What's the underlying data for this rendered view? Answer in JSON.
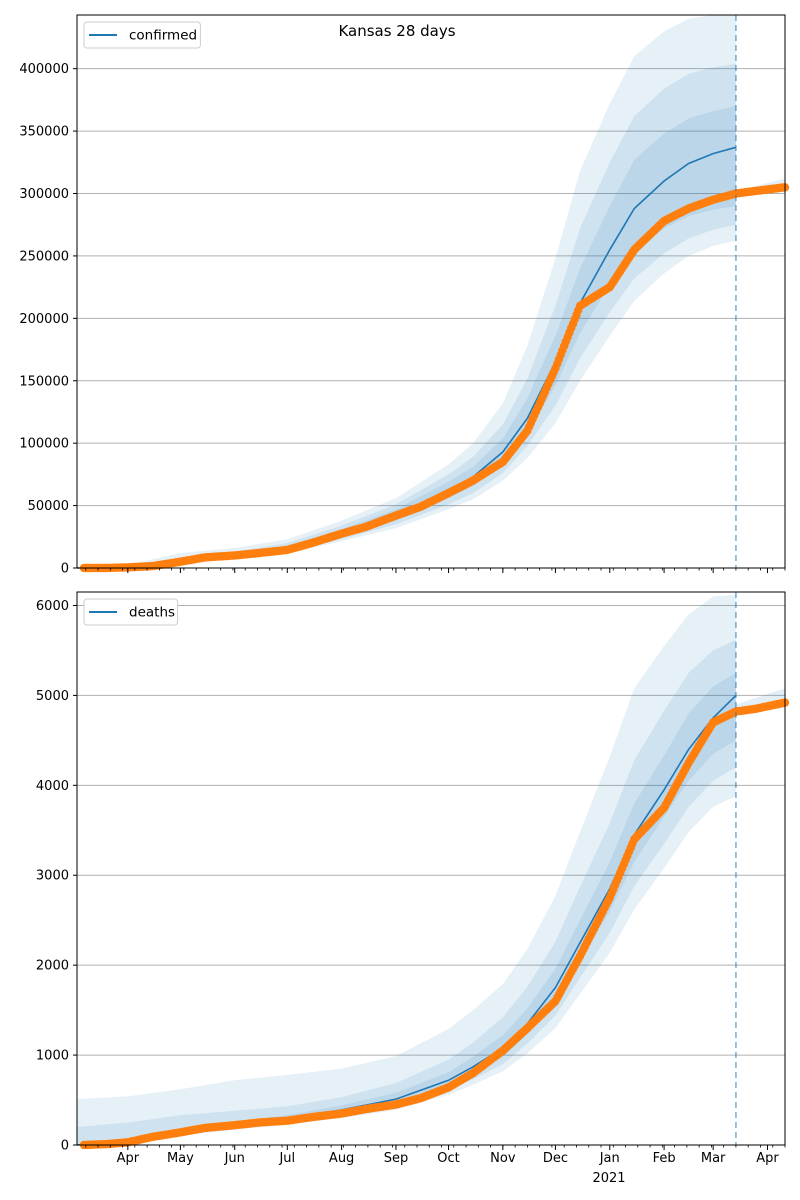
{
  "title": "Kansas 28 days",
  "colors": {
    "forecast": "#1f77b4",
    "observed": "#ff7f0e",
    "grid": "#b0b0b0",
    "band": "#1f77b4",
    "cutoff": "#1f77b4"
  },
  "x_axis": {
    "months": [
      {
        "label": "Apr",
        "date": "2020-04-01"
      },
      {
        "label": "May",
        "date": "2020-05-01"
      },
      {
        "label": "Jun",
        "date": "2020-06-01"
      },
      {
        "label": "Jul",
        "date": "2020-07-01"
      },
      {
        "label": "Aug",
        "date": "2020-08-01"
      },
      {
        "label": "Sep",
        "date": "2020-09-01"
      },
      {
        "label": "Oct",
        "date": "2020-10-01"
      },
      {
        "label": "Nov",
        "date": "2020-11-01"
      },
      {
        "label": "Dec",
        "date": "2020-12-01"
      },
      {
        "label": "Jan",
        "date": "2021-01-01"
      },
      {
        "label": "Feb",
        "date": "2021-02-01"
      },
      {
        "label": "Mar",
        "date": "2021-03-01"
      },
      {
        "label": "Apr",
        "date": "2021-04-01"
      }
    ],
    "year_label": "2021",
    "xlim": [
      "2020-03-03",
      "2021-04-11"
    ],
    "forecast_cutoff": "2021-03-14"
  },
  "chart_data": [
    {
      "type": "line",
      "legend": "confirmed",
      "legend_position": "upper-left",
      "grid": "horizontal",
      "ylim": [
        0,
        443000
      ],
      "yticks": [
        0,
        50000,
        100000,
        150000,
        200000,
        250000,
        300000,
        350000,
        400000
      ],
      "forecast": {
        "x": [
          "2020-03-03",
          "2020-04-01",
          "2020-05-01",
          "2020-06-01",
          "2020-07-01",
          "2020-08-01",
          "2020-09-01",
          "2020-10-01",
          "2020-10-15",
          "2020-11-01",
          "2020-11-15",
          "2020-12-01",
          "2020-12-15",
          "2021-01-01",
          "2021-01-15",
          "2021-02-01",
          "2021-02-15",
          "2021-03-01",
          "2021-03-14"
        ],
        "median": [
          0,
          500,
          5500,
          9800,
          15500,
          28000,
          42000,
          62000,
          73000,
          93000,
          120000,
          165000,
          212000,
          255000,
          288000,
          310000,
          324000,
          332000,
          337000
        ],
        "band_50_lo": [
          0,
          400,
          4500,
          8500,
          13500,
          25000,
          38000,
          56000,
          66000,
          84000,
          108000,
          146000,
          188000,
          227000,
          253000,
          272000,
          282000,
          287000,
          290000
        ],
        "band_50_hi": [
          0,
          700,
          6500,
          11000,
          17500,
          31000,
          47000,
          69000,
          81000,
          104000,
          136000,
          186000,
          240000,
          290000,
          327000,
          348000,
          360000,
          366000,
          370000
        ],
        "band_80_lo": [
          0,
          300,
          3800,
          7800,
          12500,
          23000,
          35000,
          51000,
          60000,
          76000,
          98000,
          130000,
          168000,
          205000,
          232000,
          252000,
          264000,
          271000,
          275000
        ],
        "band_80_hi": [
          0,
          1200,
          8500,
          13000,
          20000,
          34000,
          51000,
          75000,
          89000,
          115000,
          152000,
          210000,
          272000,
          325000,
          362000,
          384000,
          396000,
          401000,
          404000
        ],
        "band_95_lo": [
          0,
          250,
          3300,
          7200,
          11800,
          21500,
          32000,
          47000,
          55000,
          70000,
          88000,
          116000,
          150000,
          186000,
          214000,
          236000,
          250000,
          258000,
          262000
        ],
        "band_95_hi": [
          0,
          2500,
          12000,
          16000,
          23000,
          38000,
          56000,
          83000,
          100000,
          132000,
          178000,
          248000,
          318000,
          372000,
          410000,
          430000,
          440000,
          443000,
          443000
        ]
      },
      "observed": {
        "x": [
          "2020-03-07",
          "2020-03-20",
          "2020-04-01",
          "2020-04-15",
          "2020-05-01",
          "2020-05-15",
          "2020-06-01",
          "2020-06-15",
          "2020-07-01",
          "2020-07-15",
          "2020-08-01",
          "2020-08-15",
          "2020-09-01",
          "2020-09-15",
          "2020-10-01",
          "2020-10-15",
          "2020-11-01",
          "2020-11-15",
          "2020-12-01",
          "2020-12-15",
          "2021-01-01",
          "2021-01-15",
          "2021-02-01",
          "2021-02-15",
          "2021-03-01",
          "2021-03-14",
          "2021-03-25",
          "2021-04-11"
        ],
        "y": [
          1,
          30,
          500,
          1500,
          5000,
          8500,
          10000,
          12000,
          14500,
          20000,
          27500,
          33000,
          42000,
          49000,
          60000,
          70000,
          85000,
          110000,
          160000,
          210000,
          225000,
          255000,
          278000,
          288000,
          295000,
          300000,
          302000,
          305000
        ]
      },
      "extension": {
        "x": [
          "2021-03-14",
          "2021-04-11"
        ],
        "lo": [
          298000,
          301000
        ],
        "hi": [
          302000,
          312000
        ]
      }
    },
    {
      "type": "line",
      "legend": "deaths",
      "legend_position": "upper-left",
      "grid": "horizontal",
      "ylim": [
        0,
        6150
      ],
      "yticks": [
        0,
        1000,
        2000,
        3000,
        4000,
        5000,
        6000
      ],
      "forecast": {
        "x": [
          "2020-03-03",
          "2020-04-01",
          "2020-05-01",
          "2020-06-01",
          "2020-07-01",
          "2020-08-01",
          "2020-09-01",
          "2020-10-01",
          "2020-10-15",
          "2020-11-01",
          "2020-11-15",
          "2020-12-01",
          "2020-12-15",
          "2021-01-01",
          "2021-01-15",
          "2021-02-01",
          "2021-02-15",
          "2021-03-01",
          "2021-03-14"
        ],
        "median": [
          0,
          40,
          160,
          230,
          290,
          390,
          510,
          720,
          870,
          1080,
          1350,
          1750,
          2250,
          2850,
          3450,
          3950,
          4400,
          4750,
          5000
        ],
        "band_50_lo": [
          0,
          30,
          140,
          210,
          270,
          360,
          470,
          660,
          790,
          980,
          1230,
          1580,
          2050,
          2600,
          3150,
          3650,
          4050,
          4350,
          4500
        ],
        "band_50_hi": [
          0,
          60,
          190,
          260,
          330,
          440,
          580,
          810,
          980,
          1220,
          1520,
          1960,
          2500,
          3150,
          3800,
          4330,
          4800,
          5100,
          5250
        ],
        "band_80_lo": [
          0,
          20,
          120,
          190,
          250,
          330,
          430,
          610,
          730,
          900,
          1130,
          1440,
          1860,
          2360,
          2880,
          3350,
          3760,
          4050,
          4200
        ],
        "band_80_hi": [
          200,
          250,
          330,
          380,
          430,
          530,
          690,
          950,
          1140,
          1420,
          1760,
          2260,
          2870,
          3580,
          4280,
          4830,
          5250,
          5500,
          5620
        ],
        "band_95_lo": [
          0,
          10,
          100,
          170,
          230,
          300,
          390,
          560,
          670,
          820,
          1020,
          1300,
          1680,
          2140,
          2620,
          3080,
          3480,
          3760,
          3880
        ],
        "band_95_hi": [
          510,
          540,
          620,
          720,
          780,
          850,
          990,
          1290,
          1500,
          1790,
          2180,
          2770,
          3480,
          4320,
          5080,
          5550,
          5900,
          6100,
          6120
        ]
      },
      "observed": {
        "x": [
          "2020-03-07",
          "2020-03-20",
          "2020-04-01",
          "2020-04-15",
          "2020-05-01",
          "2020-05-15",
          "2020-06-01",
          "2020-06-15",
          "2020-07-01",
          "2020-07-15",
          "2020-08-01",
          "2020-08-15",
          "2020-09-01",
          "2020-09-15",
          "2020-10-01",
          "2020-10-15",
          "2020-11-01",
          "2020-11-15",
          "2020-12-01",
          "2020-12-15",
          "2021-01-01",
          "2021-01-15",
          "2021-02-01",
          "2021-02-15",
          "2021-03-01",
          "2021-03-14",
          "2021-03-25",
          "2021-04-11"
        ],
        "y": [
          0,
          10,
          30,
          90,
          140,
          190,
          220,
          250,
          270,
          310,
          350,
          400,
          450,
          520,
          640,
          800,
          1050,
          1300,
          1600,
          2100,
          2750,
          3400,
          3750,
          4250,
          4700,
          4820,
          4850,
          4920
        ]
      },
      "extension": {
        "x": [
          "2021-03-14",
          "2021-04-11"
        ],
        "lo": [
          4790,
          4860
        ],
        "hi": [
          4900,
          5080
        ]
      }
    }
  ]
}
